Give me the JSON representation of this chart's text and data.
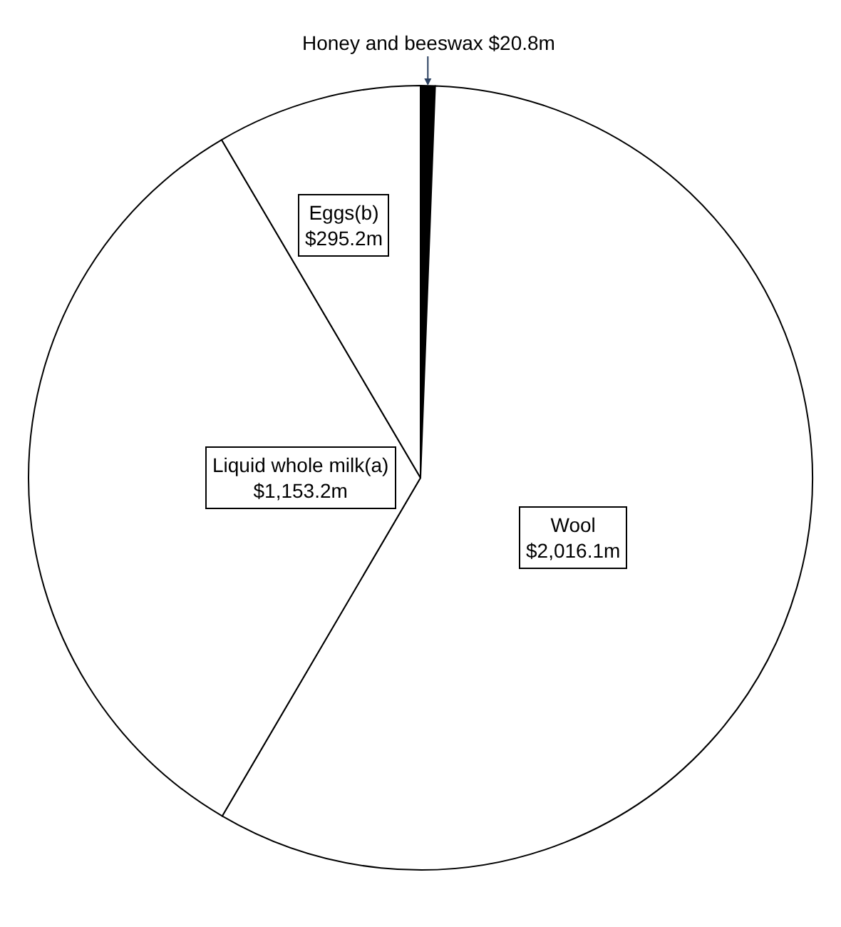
{
  "chart_data": {
    "type": "pie",
    "categories": [
      "Honey and beeswax",
      "Wool",
      "Liquid whole milk(a)",
      "Eggs(b)"
    ],
    "values": [
      20.8,
      2016.1,
      1153.2,
      295.2
    ],
    "value_labels": [
      "$20.8m",
      "$2,016.1m",
      "$1,153.2m",
      "$295.2m"
    ],
    "colors": [
      "#000000",
      "#ffffff",
      "#ffffff",
      "#ffffff"
    ],
    "legend": false
  }
}
